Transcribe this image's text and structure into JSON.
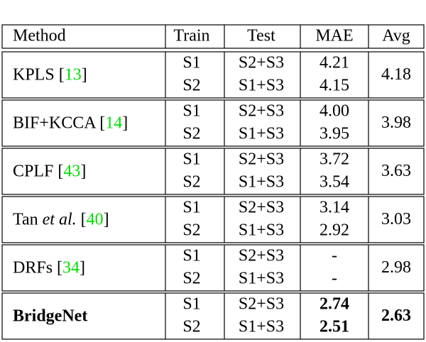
{
  "table": {
    "header": [
      "Method",
      "Train",
      "Test",
      "MAE",
      "Avg"
    ],
    "groups": [
      {
        "method": "KPLS",
        "ref": {
          "open": "[",
          "num": "13",
          "close": "]"
        },
        "rows": [
          [
            "S1",
            "S2+S3",
            "4.21"
          ],
          [
            "S2",
            "S1+S3",
            "4.15"
          ]
        ],
        "avg": "4.18"
      },
      {
        "method": "BIF+KCCA",
        "ref": {
          "open": "[",
          "num": "14",
          "close": "]"
        },
        "rows": [
          [
            "S1",
            "S2+S3",
            "4.00"
          ],
          [
            "S2",
            "S1+S3",
            "3.95"
          ]
        ],
        "avg": "3.98"
      },
      {
        "method": "CPLF",
        "ref": {
          "open": "[",
          "num": "43",
          "close": "]"
        },
        "rows": [
          [
            "S1",
            "S2+S3",
            "3.72"
          ],
          [
            "S2",
            "S1+S3",
            "3.54"
          ]
        ],
        "avg": "3.63"
      },
      {
        "method": "Tan",
        "method_em": "et al.",
        "ref": {
          "open": "[",
          "num": "40",
          "close": "]"
        },
        "rows": [
          [
            "S1",
            "S2+S3",
            "3.14"
          ],
          [
            "S2",
            "S1+S3",
            "2.92"
          ]
        ],
        "avg": "3.03"
      },
      {
        "method": "DRFs",
        "ref": {
          "open": "[",
          "num": "34",
          "close": "]"
        },
        "rows": [
          [
            "S1",
            "S2+S3",
            "-"
          ],
          [
            "S2",
            "S1+S3",
            "-"
          ]
        ],
        "avg": "2.98"
      },
      {
        "method": "BridgeNet",
        "bold": true,
        "rows": [
          [
            "S1",
            "S2+S3",
            "2.74"
          ],
          [
            "S2",
            "S1+S3",
            "2.51"
          ]
        ],
        "avg": "2.63"
      }
    ]
  }
}
